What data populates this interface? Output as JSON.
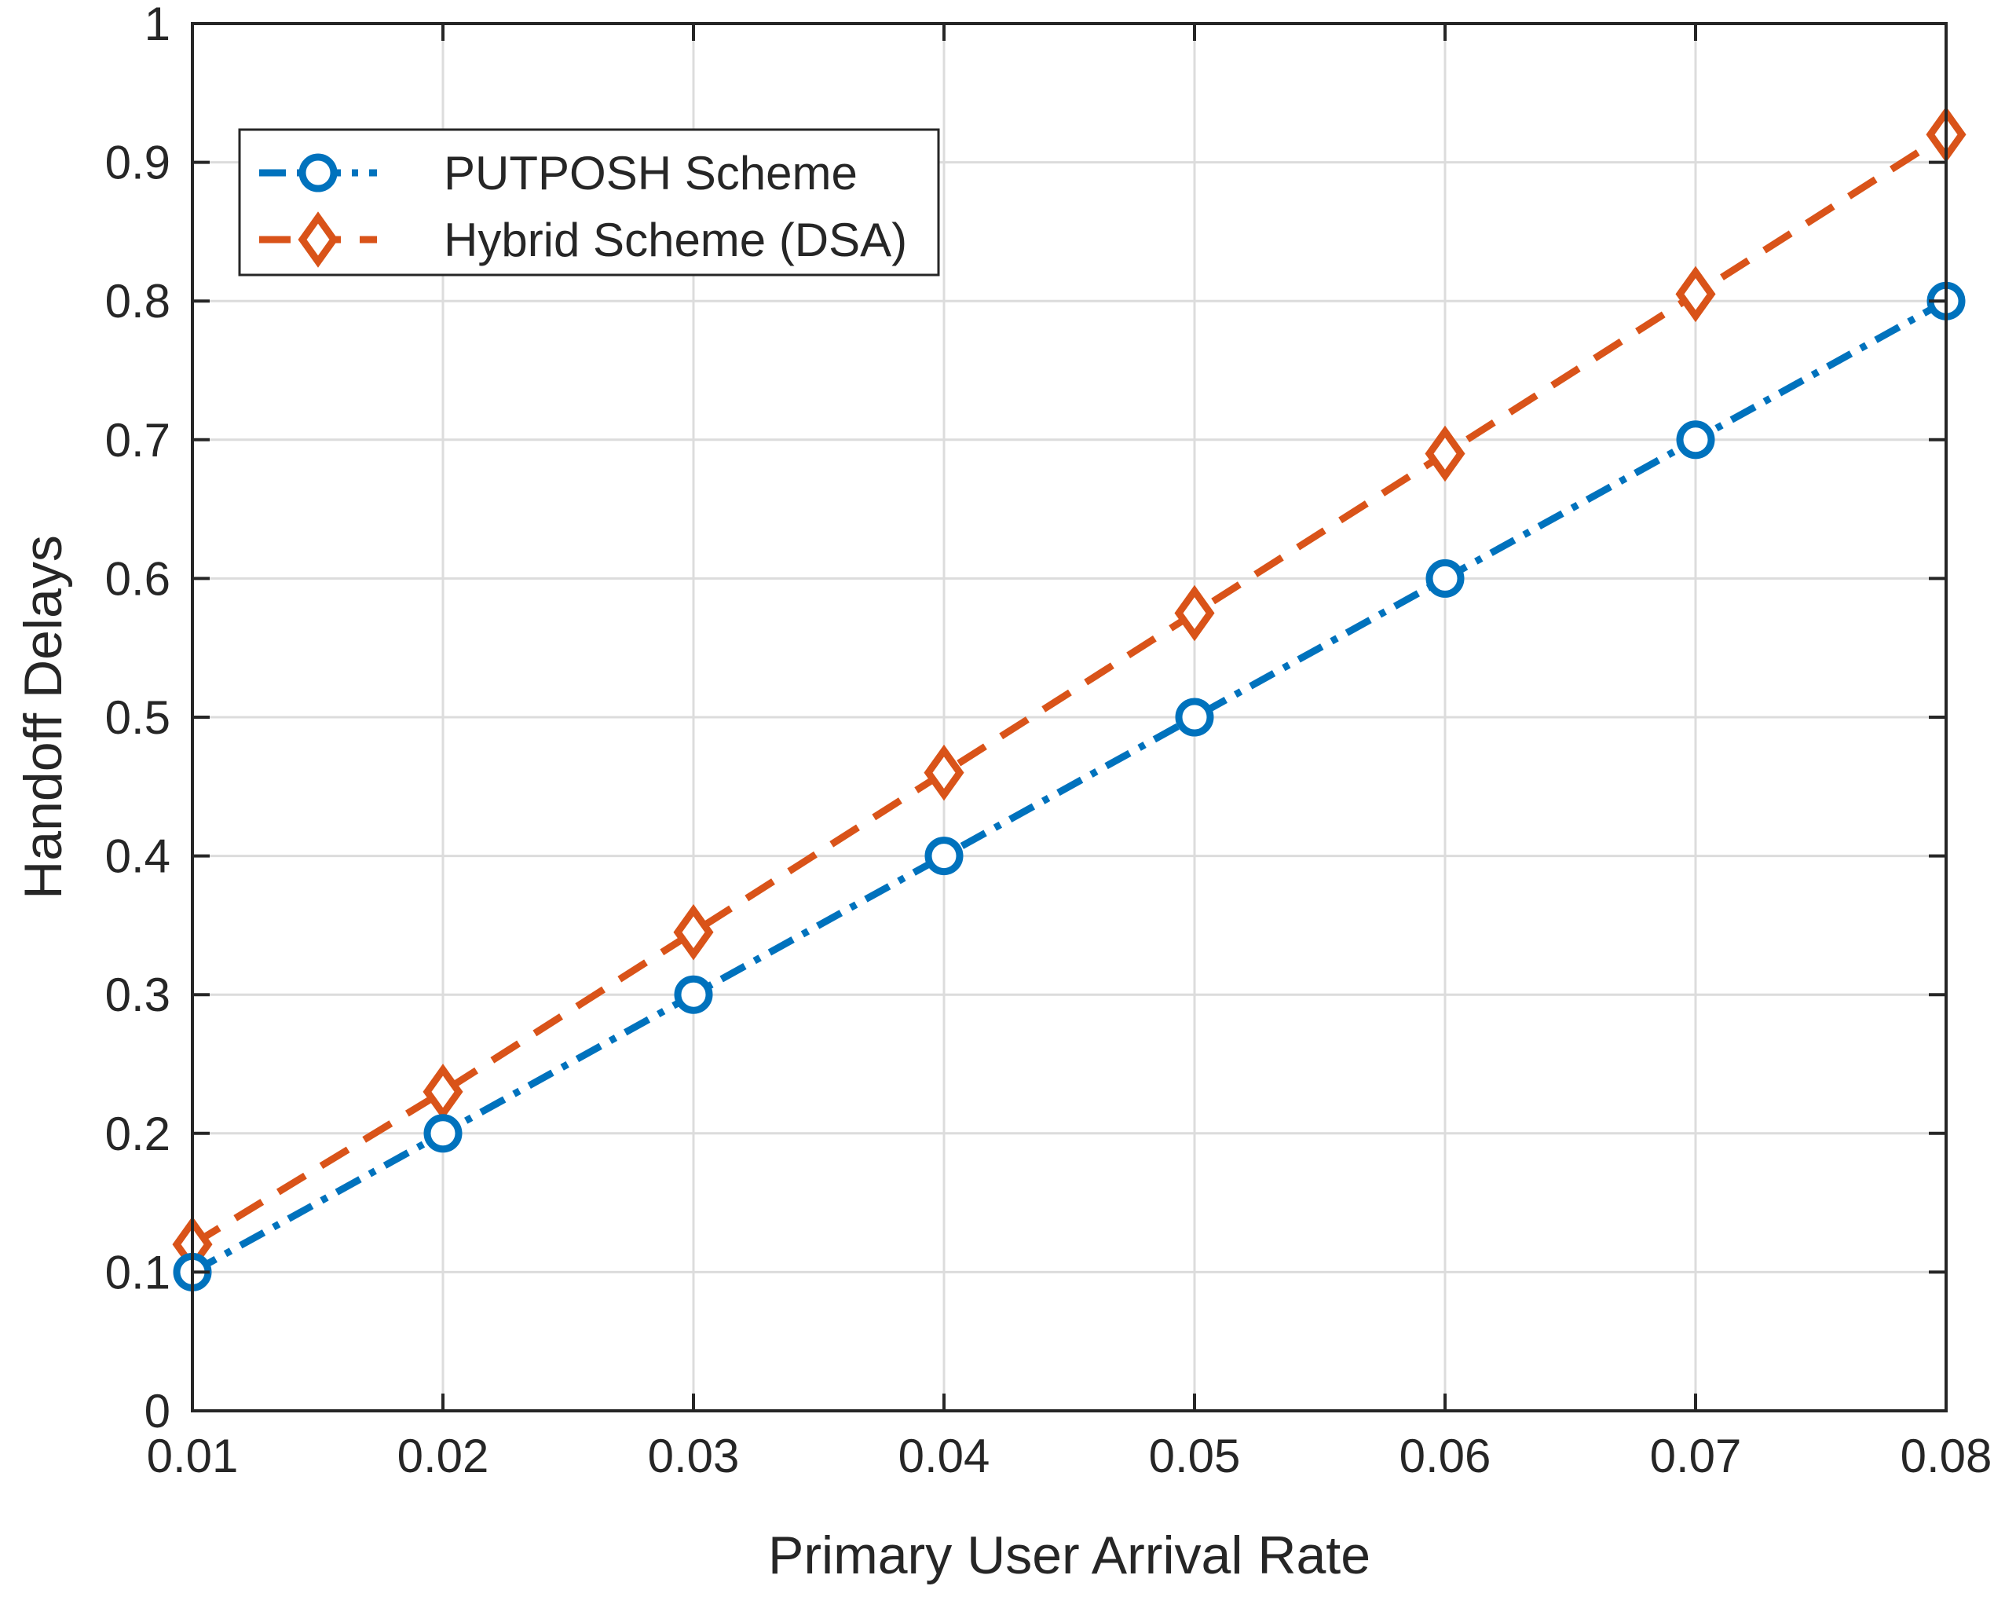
{
  "chart_data": {
    "type": "line",
    "title": "",
    "xlabel": "Primary User Arrival Rate",
    "ylabel": "Handoff Delays",
    "xlim": [
      0.01,
      0.08
    ],
    "ylim": [
      0,
      1
    ],
    "grid": true,
    "legend_position": "top-left",
    "x": [
      0.01,
      0.02,
      0.03,
      0.04,
      0.05,
      0.06,
      0.07,
      0.08
    ],
    "x_tick_labels": [
      "0.01",
      "0.02",
      "0.03",
      "0.04",
      "0.05",
      "0.06",
      "0.07",
      "0.08"
    ],
    "y_ticks": [
      0,
      0.1,
      0.2,
      0.3,
      0.4,
      0.5,
      0.6,
      0.7,
      0.8,
      0.9,
      1
    ],
    "y_tick_labels": [
      "0",
      "0.1",
      "0.2",
      "0.3",
      "0.4",
      "0.5",
      "0.6",
      "0.7",
      "0.8",
      "0.9",
      "1"
    ],
    "series": [
      {
        "name": "PUTPOSH Scheme",
        "marker": "circle",
        "line_style": "dash-dot",
        "color": "#0072BD",
        "values": [
          0.1,
          0.2,
          0.3,
          0.4,
          0.5,
          0.6,
          0.7,
          0.8
        ]
      },
      {
        "name": "Hybrid Scheme (DSA)",
        "marker": "diamond",
        "line_style": "dashed",
        "color": "#D95319",
        "values": [
          0.12,
          0.23,
          0.345,
          0.46,
          0.575,
          0.69,
          0.805,
          0.92
        ]
      }
    ]
  }
}
